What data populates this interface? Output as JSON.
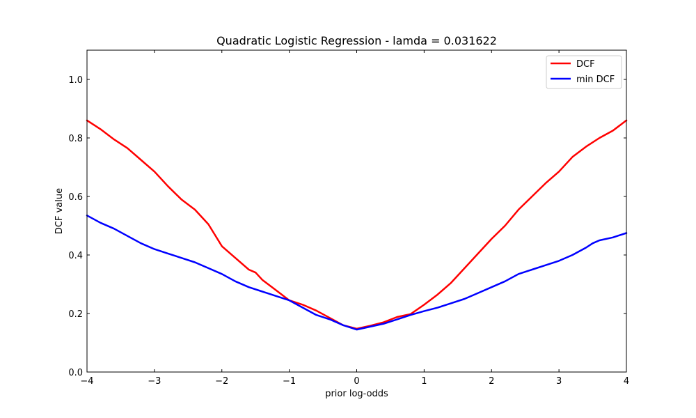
{
  "chart_data": {
    "type": "line",
    "title": "Quadratic Logistic Regression - lamda = 0.031622",
    "xlabel": "prior log-odds",
    "ylabel": "DCF value",
    "xlim": [
      -4,
      4
    ],
    "ylim": [
      0,
      1.1
    ],
    "xticks": [
      -4,
      -3,
      -2,
      -1,
      0,
      1,
      2,
      3,
      4
    ],
    "xtick_labels": [
      "−4",
      "−3",
      "−2",
      "−1",
      "0",
      "1",
      "2",
      "3",
      "4"
    ],
    "yticks": [
      0.0,
      0.2,
      0.4,
      0.6,
      0.8,
      1.0
    ],
    "ytick_labels": [
      "0.0",
      "0.2",
      "0.4",
      "0.6",
      "0.8",
      "1.0"
    ],
    "grid": false,
    "legend_position": "top-right",
    "series": [
      {
        "name": "DCF",
        "color": "#ff0000",
        "x": [
          -4.0,
          -3.8,
          -3.6,
          -3.4,
          -3.2,
          -3.0,
          -2.8,
          -2.6,
          -2.4,
          -2.2,
          -2.0,
          -1.8,
          -1.6,
          -1.5,
          -1.4,
          -1.2,
          -1.0,
          -0.8,
          -0.6,
          -0.4,
          -0.2,
          0.0,
          0.2,
          0.4,
          0.6,
          0.8,
          1.0,
          1.2,
          1.4,
          1.6,
          1.8,
          2.0,
          2.2,
          2.4,
          2.6,
          2.8,
          3.0,
          3.2,
          3.4,
          3.6,
          3.8,
          4.0
        ],
        "y": [
          0.86,
          0.83,
          0.795,
          0.765,
          0.725,
          0.685,
          0.635,
          0.59,
          0.555,
          0.505,
          0.43,
          0.39,
          0.35,
          0.34,
          0.315,
          0.28,
          0.245,
          0.23,
          0.21,
          0.185,
          0.16,
          0.148,
          0.158,
          0.17,
          0.188,
          0.198,
          0.23,
          0.265,
          0.305,
          0.355,
          0.405,
          0.455,
          0.5,
          0.555,
          0.6,
          0.645,
          0.685,
          0.735,
          0.77,
          0.8,
          0.825,
          0.86
        ]
      },
      {
        "name": "min DCF",
        "color": "#0000ff",
        "x": [
          -4.0,
          -3.8,
          -3.6,
          -3.4,
          -3.2,
          -3.0,
          -2.8,
          -2.6,
          -2.4,
          -2.2,
          -2.0,
          -1.8,
          -1.6,
          -1.4,
          -1.2,
          -1.0,
          -0.8,
          -0.6,
          -0.4,
          -0.2,
          0.0,
          0.2,
          0.4,
          0.6,
          0.8,
          1.0,
          1.2,
          1.4,
          1.6,
          1.8,
          2.0,
          2.2,
          2.4,
          2.6,
          2.8,
          3.0,
          3.2,
          3.4,
          3.5,
          3.6,
          3.8,
          4.0
        ],
        "y": [
          0.535,
          0.51,
          0.49,
          0.465,
          0.44,
          0.42,
          0.405,
          0.39,
          0.375,
          0.355,
          0.335,
          0.31,
          0.29,
          0.275,
          0.26,
          0.245,
          0.22,
          0.195,
          0.18,
          0.16,
          0.145,
          0.155,
          0.165,
          0.18,
          0.195,
          0.208,
          0.22,
          0.235,
          0.25,
          0.27,
          0.29,
          0.31,
          0.335,
          0.35,
          0.365,
          0.38,
          0.4,
          0.425,
          0.44,
          0.45,
          0.46,
          0.475
        ]
      }
    ]
  }
}
